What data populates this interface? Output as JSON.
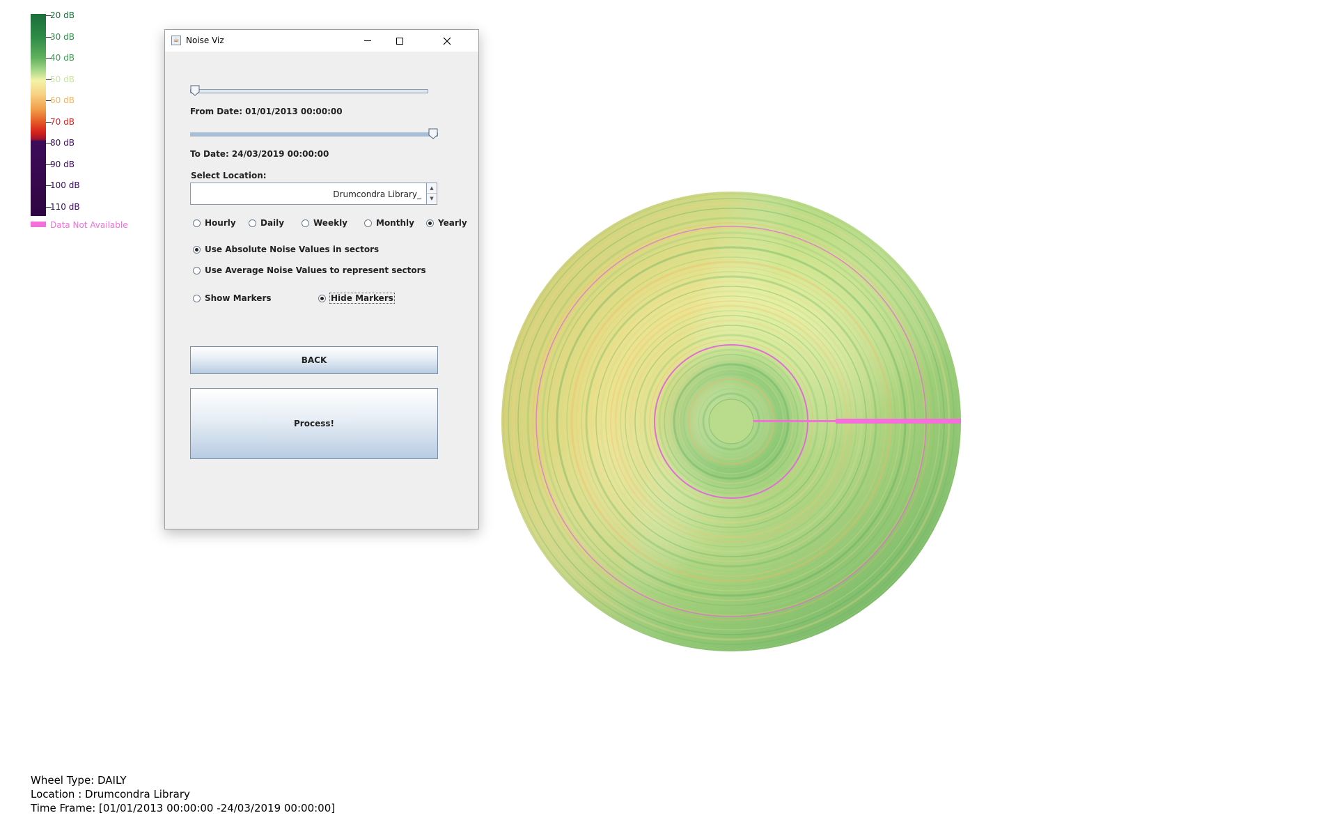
{
  "legend": {
    "ticks": [
      {
        "label": "20 dB",
        "color": "#1a6e3a"
      },
      {
        "label": "30 dB",
        "color": "#2f8c48"
      },
      {
        "label": "40 dB",
        "color": "#3b9a50"
      },
      {
        "label": "50 dB",
        "color": "#c9e59a"
      },
      {
        "label": "60 dB",
        "color": "#f4b35c"
      },
      {
        "label": "70 dB",
        "color": "#e01f1f"
      },
      {
        "label": "80 dB",
        "color": "#3a0a5e"
      },
      {
        "label": "90 dB",
        "color": "#3a0a5e"
      },
      {
        "label": "100 dB",
        "color": "#3a0a5e"
      },
      {
        "label": "110 dB",
        "color": "#3a0a5e"
      }
    ],
    "not_available_label": "Data Not Available",
    "not_available_color": "#f46fd9"
  },
  "window": {
    "title": "Noise Viz",
    "icon": "java-coffee-icon",
    "from_slider_fraction": 0.0,
    "to_slider_fraction": 1.0,
    "from_date_label": "From Date: 01/01/2013 00:00:00",
    "to_date_label": "To Date: 24/03/2019 00:00:00",
    "select_location_label": "Select Location:",
    "location_value": "Drumcondra Library_",
    "period_options": [
      {
        "label": "Hourly",
        "selected": false
      },
      {
        "label": "Daily",
        "selected": false
      },
      {
        "label": "Weekly",
        "selected": false
      },
      {
        "label": "Monthly",
        "selected": false
      },
      {
        "label": "Yearly",
        "selected": true
      }
    ],
    "value_mode_options": [
      {
        "label": "Use Absolute Noise Values in sectors",
        "selected": true
      },
      {
        "label": "Use Average Noise Values to represent sectors",
        "selected": false
      }
    ],
    "marker_options": [
      {
        "label": "Show Markers",
        "selected": false
      },
      {
        "label": "Hide Markers",
        "selected": true
      }
    ],
    "back_button": "BACK",
    "process_button": "Process!"
  },
  "info": {
    "wheel_type": "Wheel Type: DAILY",
    "location": "Location  : Drumcondra Library",
    "time_frame": "Time Frame: [01/01/2013 00:00:00 -24/03/2019 00:00:00]"
  }
}
